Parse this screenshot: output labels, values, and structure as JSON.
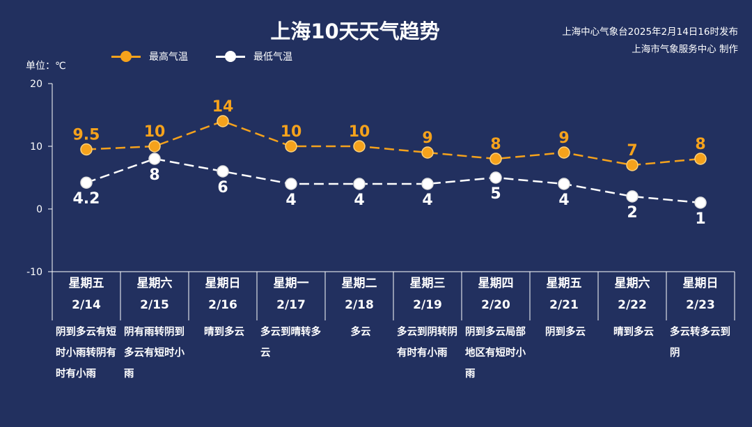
{
  "title": "上海10天天气趋势",
  "source": {
    "line1": "上海中心气象台2025年2月14日16时发布",
    "line2": "上海市气象服务中心 制作"
  },
  "unit_label": "单位：℃",
  "colors": {
    "background": "#22305f",
    "high": "#f5a21c",
    "low": "#ffffff",
    "axis": "#ffffff"
  },
  "chart_data": {
    "type": "line",
    "title": "上海10天天气趋势",
    "ylabel": "单位：℃",
    "ylim": [
      -10,
      20
    ],
    "yticks": [
      -10,
      0,
      10,
      20
    ],
    "grid": false,
    "legend_position": "top-left",
    "categories": [
      "2/14",
      "2/15",
      "2/16",
      "2/17",
      "2/18",
      "2/19",
      "2/20",
      "2/21",
      "2/22",
      "2/23"
    ],
    "weekdays": [
      "星期五",
      "星期六",
      "星期日",
      "星期一",
      "星期二",
      "星期三",
      "星期四",
      "星期五",
      "星期六",
      "星期日"
    ],
    "weather": [
      "阴到多云有短时小雨转阴有时有小雨",
      "阴有雨转阴到多云有短时小雨",
      "晴到多云",
      "多云到晴转多云",
      "多云",
      "多云到阴转阴有时有小雨",
      "阴到多云局部地区有短时小雨",
      "阴到多云",
      "晴到多云",
      "多云转多云到阴"
    ],
    "series": [
      {
        "name": "最高气温",
        "values": [
          9.5,
          10,
          14,
          10,
          10,
          9,
          8,
          9,
          7,
          8
        ],
        "labels": [
          "9.5",
          "10",
          "14",
          "10",
          "10",
          "9",
          "8",
          "9",
          "7",
          "8"
        ]
      },
      {
        "name": "最低气温",
        "values": [
          4.2,
          8,
          6,
          4,
          4,
          4,
          5,
          4,
          2,
          1
        ],
        "labels": [
          "4.2",
          "8",
          "6",
          "4",
          "4",
          "4",
          "5",
          "4",
          "2",
          "1"
        ]
      }
    ]
  }
}
